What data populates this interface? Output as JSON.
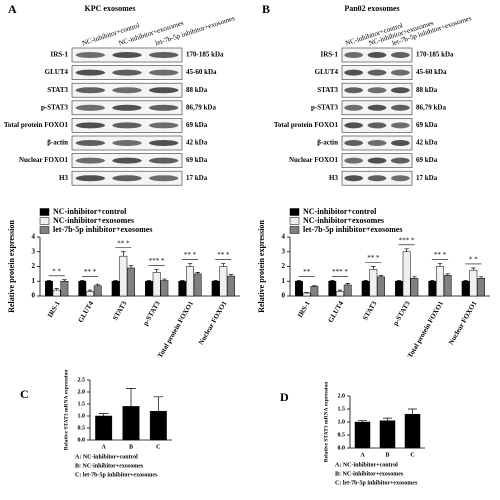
{
  "blots": [
    {
      "panel": "A",
      "title": "KPC exosomes",
      "columns": [
        "NC-inhibitor+control",
        "NC-inhibitor+exosomes",
        "let-7b-5p inhibitor+exosomes"
      ],
      "rows": [
        {
          "name": "IRS-1",
          "size": "170-185 kDa"
        },
        {
          "name": "GLUT4",
          "size": "45-60 kDa"
        },
        {
          "name": "STAT3",
          "size": "88 kDa"
        },
        {
          "name": "p-STAT3",
          "size": "86,79 kDa"
        },
        {
          "name": "Total protein FOXO1",
          "size": "69 kDa"
        },
        {
          "name": "β-actin",
          "size": "42 kDa"
        },
        {
          "name": "Nuclear FOXO1",
          "size": "69 kDa"
        },
        {
          "name": "H3",
          "size": "17 kDa"
        }
      ]
    },
    {
      "panel": "B",
      "title": "Pan02 exosomes",
      "columns": [
        "NC-inhibitor+control",
        "NC-inhibitor+exosomes",
        "let-7b-5p inhibitor+exosomes"
      ],
      "rows": [
        {
          "name": "IRS-1",
          "size": "170-185 kDa"
        },
        {
          "name": "GLUT4",
          "size": "45-60 kDa"
        },
        {
          "name": "STAT3",
          "size": "88 kDa"
        },
        {
          "name": "p-STAT3",
          "size": "86,79 kDa"
        },
        {
          "name": "Total protein FOXO1",
          "size": "69 kDa"
        },
        {
          "name": "β-actin",
          "size": "42 kDa"
        },
        {
          "name": "Nuclear FOXO1",
          "size": "69 kDa"
        },
        {
          "name": "H3",
          "size": "17 kDa"
        }
      ]
    }
  ],
  "chart_data": [
    {
      "type": "bar",
      "ylabel": "Relative protein expression",
      "categories": [
        "IRS-1",
        "GLUT4",
        "STAT3",
        "p-STAT3",
        "Total protein FOXO1",
        "Nuclear FOXO1"
      ],
      "series": [
        {
          "name": "NC-inhibitor+control",
          "color": "#000000",
          "values": [
            1,
            1,
            1,
            1,
            1,
            1
          ],
          "errors": [
            0.05,
            0.05,
            0.05,
            0.05,
            0.05,
            0.05
          ]
        },
        {
          "name": "NC-inhibitor+exosomes",
          "color": "#f0f0f0",
          "values": [
            0.4,
            0.3,
            2.7,
            1.6,
            2.0,
            2.0
          ],
          "errors": [
            0.1,
            0.1,
            0.3,
            0.2,
            0.2,
            0.2
          ]
        },
        {
          "name": "let-7b-5p inhibitor+exosomes",
          "color": "#808080",
          "values": [
            1.0,
            0.7,
            1.9,
            1.05,
            1.5,
            1.35
          ],
          "errors": [
            0.1,
            0.1,
            0.15,
            0.1,
            0.1,
            0.1
          ]
        }
      ],
      "annotations": [
        "* *",
        "** *",
        "** *",
        "*** *",
        "** *",
        "** *"
      ],
      "ylim": [
        0,
        4
      ],
      "yticks": [
        0,
        1,
        2,
        3,
        4
      ]
    },
    {
      "type": "bar",
      "ylabel": "Relative protein expression",
      "categories": [
        "IRS-1",
        "GLUT4",
        "STAT3",
        "p-STAT3",
        "Total protein FOXO1",
        "Nuclear FOXO1"
      ],
      "series": [
        {
          "name": "NC-inhibitor+control",
          "color": "#000000",
          "values": [
            1,
            1,
            1,
            1,
            1,
            1
          ],
          "errors": [
            0.05,
            0.05,
            0.05,
            0.05,
            0.05,
            0.05
          ]
        },
        {
          "name": "NC-inhibitor+exosomes",
          "color": "#f0f0f0",
          "values": [
            0.2,
            0.3,
            1.8,
            3.0,
            2.0,
            1.75
          ],
          "errors": [
            0.05,
            0.1,
            0.2,
            0.2,
            0.2,
            0.15
          ]
        },
        {
          "name": "let-7b-5p inhibitor+exosomes",
          "color": "#808080",
          "values": [
            0.65,
            0.75,
            1.3,
            1.2,
            1.4,
            1.2
          ],
          "errors": [
            0.05,
            0.1,
            0.1,
            0.1,
            0.1,
            0.1
          ]
        }
      ],
      "annotations": [
        "**",
        "*** *",
        "** *",
        "*** *",
        "** *",
        "* *"
      ],
      "ylim": [
        0,
        4
      ],
      "yticks": [
        0,
        1,
        2,
        3,
        4
      ]
    },
    {
      "type": "bar",
      "panel": "C",
      "ylabel": "Relative STAT3 mRNA expression",
      "categories": [
        "A",
        "B",
        "C"
      ],
      "series": [
        {
          "color": "#000000",
          "values": [
            1.0,
            1.4,
            1.2
          ],
          "errors": [
            0.1,
            0.75,
            0.6
          ]
        }
      ],
      "ylim": [
        0,
        2.5
      ],
      "yticks": [
        {
          "value": 0,
          "label": "0.0"
        },
        {
          "value": 0.5,
          "label": "0.5"
        },
        {
          "value": 1,
          "label": "1.0"
        },
        {
          "value": 1.5,
          "label": "1.5"
        },
        {
          "value": 2,
          "label": "2.0"
        },
        {
          "value": 2.5,
          "label": "2.5"
        }
      ],
      "footnotes": [
        "A: NC-inhibitor+control",
        "B: NC-inhibitor+exosomes",
        "C: let-7b-5p inhibitor+exosomes"
      ]
    },
    {
      "type": "bar",
      "panel": "D",
      "ylabel": "Relative STAT3 mRNA expression",
      "categories": [
        "A",
        "B",
        "C"
      ],
      "series": [
        {
          "color": "#000000",
          "values": [
            1.0,
            1.05,
            1.3
          ],
          "errors": [
            0.05,
            0.1,
            0.2
          ]
        }
      ],
      "ylim": [
        0,
        2
      ],
      "yticks": [
        {
          "value": 0,
          "label": "0.0"
        },
        {
          "value": 0.5,
          "label": "0.5"
        },
        {
          "value": 1,
          "label": "1.0"
        },
        {
          "value": 1.5,
          "label": "1.5"
        },
        {
          "value": 2,
          "label": "2.0"
        }
      ],
      "footnotes": [
        "A: NC-inhibitor+control",
        "B: NC-inhibitor+exosomes",
        "C: let-7b-5p inhibitor+exosomes"
      ]
    }
  ]
}
